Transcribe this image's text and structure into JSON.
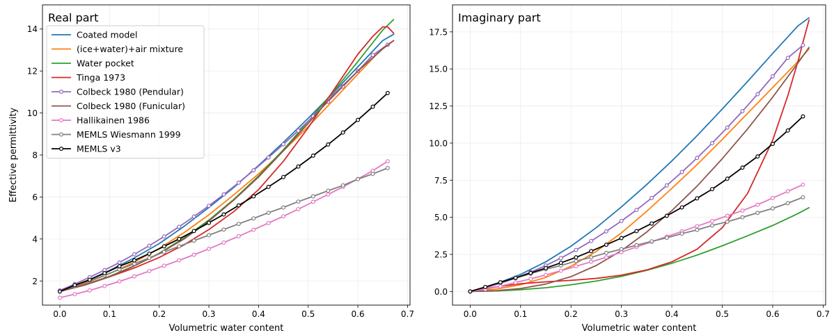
{
  "chart_data": [
    {
      "type": "line",
      "title": "Real part",
      "xlabel": "Volumetric water content",
      "ylabel": "Effective permittivity",
      "xlim": [
        -0.035,
        0.705
      ],
      "ylim": [
        0.85,
        15.15
      ],
      "xticks": [
        0.0,
        0.1,
        0.2,
        0.3,
        0.4,
        0.5,
        0.6,
        0.7
      ],
      "xtick_labels": [
        "0.0",
        "0.1",
        "0.2",
        "0.3",
        "0.4",
        "0.5",
        "0.6",
        "0.7"
      ],
      "yticks": [
        2,
        4,
        6,
        8,
        10,
        12,
        14
      ],
      "ytick_labels": [
        "2",
        "4",
        "6",
        "8",
        "10",
        "12",
        "14"
      ],
      "grid": true,
      "legend": "upper-left",
      "series": [
        {
          "name": "Coated model",
          "color": "#1f77b4",
          "marker": false,
          "x": [
            0.0,
            0.05,
            0.1,
            0.15,
            0.2,
            0.25,
            0.3,
            0.35,
            0.4,
            0.45,
            0.5,
            0.55,
            0.6,
            0.65,
            0.672
          ],
          "y": [
            1.5,
            1.96,
            2.5,
            3.1,
            3.78,
            4.6,
            5.5,
            6.45,
            7.5,
            8.6,
            9.75,
            10.95,
            12.2,
            13.45,
            13.75
          ]
        },
        {
          "name": "(ice+water)+air mixture",
          "color": "#ff7f0e",
          "marker": false,
          "x": [
            0.0,
            0.05,
            0.1,
            0.15,
            0.2,
            0.25,
            0.3,
            0.35,
            0.4,
            0.45,
            0.5,
            0.55,
            0.6,
            0.65,
            0.672
          ],
          "y": [
            1.5,
            1.88,
            2.35,
            2.9,
            3.55,
            4.3,
            5.15,
            6.1,
            7.1,
            8.2,
            9.35,
            10.6,
            11.85,
            13.1,
            13.45
          ]
        },
        {
          "name": "Water pocket",
          "color": "#2ca02c",
          "marker": false,
          "x": [
            0.0,
            0.05,
            0.1,
            0.15,
            0.2,
            0.25,
            0.3,
            0.35,
            0.4,
            0.45,
            0.5,
            0.55,
            0.6,
            0.65,
            0.672
          ],
          "y": [
            1.5,
            1.82,
            2.22,
            2.72,
            3.32,
            4.05,
            4.9,
            5.88,
            7.0,
            8.25,
            9.6,
            11.0,
            12.45,
            13.95,
            14.45
          ]
        },
        {
          "name": "Tinga 1973",
          "color": "#d62728",
          "marker": false,
          "x": [
            0.0,
            0.05,
            0.1,
            0.15,
            0.2,
            0.25,
            0.3,
            0.35,
            0.4,
            0.45,
            0.5,
            0.55,
            0.6,
            0.63,
            0.65,
            0.66,
            0.672
          ],
          "y": [
            1.5,
            1.82,
            2.2,
            2.62,
            3.12,
            3.72,
            4.45,
            5.3,
            6.35,
            7.7,
            9.3,
            11.05,
            12.8,
            13.65,
            14.1,
            14.1,
            13.8
          ]
        },
        {
          "name": "Colbeck 1980 (Pendular)",
          "color": "#9467bd",
          "marker": true,
          "x": [
            0.0,
            0.03,
            0.06,
            0.09,
            0.12,
            0.15,
            0.18,
            0.21,
            0.24,
            0.27,
            0.3,
            0.33,
            0.36,
            0.39,
            0.42,
            0.45,
            0.48,
            0.51,
            0.54,
            0.57,
            0.6,
            0.63,
            0.66
          ],
          "y": [
            1.55,
            1.85,
            2.18,
            2.52,
            2.88,
            3.27,
            3.68,
            4.12,
            4.58,
            5.07,
            5.58,
            6.12,
            6.68,
            7.27,
            7.88,
            8.51,
            9.16,
            9.84,
            10.54,
            11.26,
            12.0,
            12.76,
            13.25
          ]
        },
        {
          "name": "Colbeck 1980 (Funicular)",
          "color": "#8c564b",
          "marker": false,
          "x": [
            0.0,
            0.05,
            0.1,
            0.15,
            0.2,
            0.25,
            0.3,
            0.35,
            0.4,
            0.45,
            0.5,
            0.55,
            0.6,
            0.65,
            0.672
          ],
          "y": [
            1.5,
            1.8,
            2.2,
            2.72,
            3.3,
            4.0,
            4.85,
            5.85,
            6.95,
            8.2,
            9.5,
            10.85,
            12.0,
            13.05,
            13.45
          ]
        },
        {
          "name": "Hallikainen 1986",
          "color": "#e377c2",
          "marker": true,
          "x": [
            0.0,
            0.03,
            0.06,
            0.09,
            0.12,
            0.15,
            0.18,
            0.21,
            0.24,
            0.27,
            0.3,
            0.33,
            0.36,
            0.39,
            0.42,
            0.45,
            0.48,
            0.51,
            0.54,
            0.57,
            0.6,
            0.63,
            0.66
          ],
          "y": [
            1.2,
            1.37,
            1.55,
            1.76,
            1.98,
            2.22,
            2.47,
            2.73,
            2.98,
            3.25,
            3.53,
            3.83,
            4.13,
            4.44,
            4.76,
            5.08,
            5.42,
            5.77,
            6.12,
            6.48,
            6.86,
            7.25,
            7.7
          ]
        },
        {
          "name": "MEMLS Wiesmann 1999",
          "color": "#7f7f7f",
          "marker": true,
          "x": [
            0.0,
            0.03,
            0.06,
            0.09,
            0.12,
            0.15,
            0.18,
            0.21,
            0.24,
            0.27,
            0.3,
            0.33,
            0.36,
            0.39,
            0.42,
            0.45,
            0.48,
            0.51,
            0.54,
            0.57,
            0.6,
            0.63,
            0.66
          ],
          "y": [
            1.5,
            1.75,
            2.0,
            2.27,
            2.55,
            2.82,
            3.1,
            3.38,
            3.65,
            3.92,
            4.18,
            4.45,
            4.72,
            4.98,
            5.25,
            5.5,
            5.78,
            6.03,
            6.3,
            6.55,
            6.85,
            7.1,
            7.38
          ]
        },
        {
          "name": "MEMLS v3",
          "color": "#000000",
          "marker": true,
          "x": [
            0.0,
            0.03,
            0.06,
            0.09,
            0.12,
            0.15,
            0.18,
            0.21,
            0.24,
            0.27,
            0.3,
            0.33,
            0.36,
            0.39,
            0.42,
            0.45,
            0.48,
            0.51,
            0.54,
            0.57,
            0.6,
            0.63,
            0.66
          ],
          "y": [
            1.5,
            1.8,
            2.06,
            2.37,
            2.7,
            2.98,
            3.3,
            3.65,
            4.0,
            4.38,
            4.77,
            5.17,
            5.6,
            6.03,
            6.48,
            6.95,
            7.45,
            7.97,
            8.5,
            9.07,
            9.67,
            10.3,
            10.95
          ]
        }
      ]
    },
    {
      "type": "line",
      "title": "Imaginary part",
      "xlabel": "Volumetric water content",
      "ylabel": "",
      "xlim": [
        -0.035,
        0.705
      ],
      "ylim": [
        -0.92,
        19.32
      ],
      "xticks": [
        0.0,
        0.1,
        0.2,
        0.3,
        0.4,
        0.5,
        0.6,
        0.7
      ],
      "xtick_labels": [
        "0.0",
        "0.1",
        "0.2",
        "0.3",
        "0.4",
        "0.5",
        "0.6",
        "0.7"
      ],
      "yticks": [
        0.0,
        2.5,
        5.0,
        7.5,
        10.0,
        12.5,
        15.0,
        17.5
      ],
      "ytick_labels": [
        "0.0",
        "2.5",
        "5.0",
        "7.5",
        "10.0",
        "12.5",
        "15.0",
        "17.5"
      ],
      "grid": true,
      "series": [
        {
          "color": "#1f77b4",
          "marker": false,
          "x": [
            0.0,
            0.05,
            0.1,
            0.15,
            0.2,
            0.25,
            0.3,
            0.35,
            0.4,
            0.45,
            0.5,
            0.55,
            0.6,
            0.65,
            0.672
          ],
          "y": [
            0.0,
            0.5,
            1.15,
            2.0,
            3.05,
            4.3,
            5.7,
            7.2,
            8.8,
            10.5,
            12.3,
            14.15,
            16.05,
            17.9,
            18.45
          ]
        },
        {
          "color": "#ff7f0e",
          "marker": false,
          "x": [
            0.0,
            0.05,
            0.1,
            0.15,
            0.2,
            0.25,
            0.3,
            0.35,
            0.4,
            0.45,
            0.5,
            0.55,
            0.6,
            0.65,
            0.672
          ],
          "y": [
            0.0,
            0.15,
            0.45,
            0.95,
            1.7,
            2.7,
            3.95,
            5.4,
            6.95,
            8.55,
            10.25,
            12.0,
            13.75,
            15.5,
            16.35
          ]
        },
        {
          "color": "#2ca02c",
          "marker": false,
          "x": [
            0.0,
            0.05,
            0.1,
            0.15,
            0.2,
            0.25,
            0.3,
            0.35,
            0.4,
            0.45,
            0.5,
            0.55,
            0.6,
            0.65,
            0.672
          ],
          "y": [
            0.0,
            0.03,
            0.12,
            0.25,
            0.45,
            0.7,
            1.02,
            1.42,
            1.9,
            2.45,
            3.08,
            3.75,
            4.45,
            5.25,
            5.65
          ]
        },
        {
          "color": "#d62728",
          "marker": false,
          "x": [
            0.0,
            0.05,
            0.1,
            0.15,
            0.2,
            0.25,
            0.3,
            0.35,
            0.4,
            0.45,
            0.5,
            0.55,
            0.6,
            0.63,
            0.65,
            0.66,
            0.672
          ],
          "y": [
            0.0,
            0.3,
            0.52,
            0.65,
            0.75,
            0.88,
            1.1,
            1.45,
            2.0,
            2.85,
            4.3,
            6.6,
            10.2,
            13.2,
            15.5,
            16.8,
            18.3
          ]
        },
        {
          "color": "#9467bd",
          "marker": true,
          "x": [
            0.0,
            0.03,
            0.06,
            0.09,
            0.12,
            0.15,
            0.18,
            0.21,
            0.24,
            0.27,
            0.3,
            0.33,
            0.36,
            0.39,
            0.42,
            0.45,
            0.48,
            0.51,
            0.54,
            0.57,
            0.6,
            0.63,
            0.66
          ],
          "y": [
            0.0,
            0.25,
            0.55,
            0.9,
            1.3,
            1.75,
            2.25,
            2.8,
            3.4,
            4.05,
            4.75,
            5.5,
            6.3,
            7.15,
            8.05,
            9.0,
            10.0,
            11.05,
            12.15,
            13.3,
            14.5,
            15.75,
            16.6
          ]
        },
        {
          "color": "#8c564b",
          "marker": false,
          "x": [
            0.0,
            0.05,
            0.1,
            0.15,
            0.2,
            0.25,
            0.3,
            0.35,
            0.4,
            0.45,
            0.5,
            0.55,
            0.6,
            0.65,
            0.672
          ],
          "y": [
            0.0,
            0.05,
            0.2,
            0.5,
            1.0,
            1.75,
            2.75,
            4.0,
            5.45,
            7.1,
            8.95,
            10.95,
            13.1,
            15.4,
            16.45
          ]
        },
        {
          "color": "#e377c2",
          "marker": true,
          "x": [
            0.0,
            0.03,
            0.06,
            0.09,
            0.12,
            0.15,
            0.18,
            0.21,
            0.24,
            0.27,
            0.3,
            0.33,
            0.36,
            0.39,
            0.42,
            0.45,
            0.48,
            0.51,
            0.54,
            0.57,
            0.6,
            0.63,
            0.66
          ],
          "y": [
            0.0,
            0.15,
            0.35,
            0.6,
            0.85,
            1.12,
            1.4,
            1.7,
            2.0,
            2.3,
            2.65,
            3.0,
            3.35,
            3.7,
            4.05,
            4.4,
            4.75,
            5.1,
            5.45,
            5.85,
            6.3,
            6.75,
            7.2
          ]
        },
        {
          "color": "#7f7f7f",
          "marker": true,
          "x": [
            0.0,
            0.03,
            0.06,
            0.09,
            0.12,
            0.15,
            0.18,
            0.21,
            0.24,
            0.27,
            0.3,
            0.33,
            0.36,
            0.39,
            0.42,
            0.45,
            0.48,
            0.51,
            0.54,
            0.57,
            0.6,
            0.63,
            0.66
          ],
          "y": [
            0.0,
            0.3,
            0.6,
            0.9,
            1.2,
            1.5,
            1.75,
            2.05,
            2.3,
            2.6,
            2.85,
            3.12,
            3.38,
            3.62,
            3.9,
            4.15,
            4.45,
            4.7,
            5.0,
            5.3,
            5.6,
            5.95,
            6.35
          ]
        },
        {
          "color": "#000000",
          "marker": true,
          "x": [
            0.0,
            0.03,
            0.06,
            0.09,
            0.12,
            0.15,
            0.18,
            0.21,
            0.24,
            0.27,
            0.3,
            0.33,
            0.36,
            0.39,
            0.42,
            0.45,
            0.48,
            0.51,
            0.54,
            0.57,
            0.6,
            0.63,
            0.66
          ],
          "y": [
            0.0,
            0.3,
            0.62,
            0.92,
            1.25,
            1.58,
            1.93,
            2.3,
            2.72,
            3.15,
            3.6,
            4.07,
            4.58,
            5.1,
            5.67,
            6.28,
            6.9,
            7.6,
            8.35,
            9.1,
            9.95,
            10.85,
            11.8
          ]
        }
      ]
    }
  ]
}
